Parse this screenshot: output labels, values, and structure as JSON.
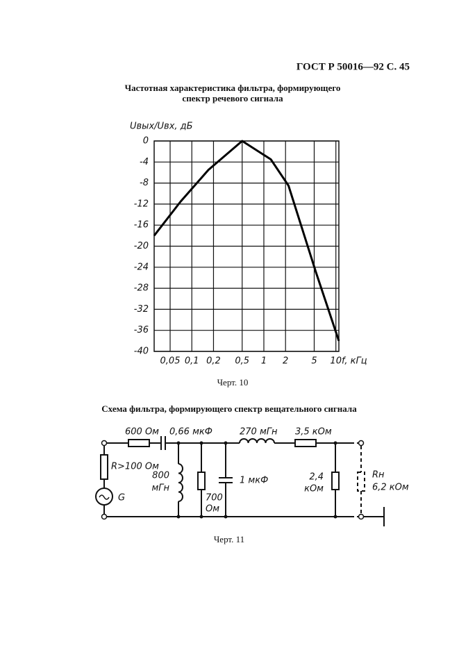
{
  "header": {
    "title": "ГОСТ Р 50016—92 С. 45"
  },
  "chart_data": {
    "type": "line",
    "title": [
      "Частотная характеристика фильтра, формирующего",
      "спектр речевого сигнала"
    ],
    "ylabel": "Uвых/Uвх, дБ",
    "xlabel": "f, кГц",
    "x": [
      0.03,
      0.07,
      0.17,
      0.5,
      1.25,
      2.2,
      5.3,
      11
    ],
    "values": [
      -18,
      -11.5,
      -5.5,
      0,
      -3.5,
      -8.5,
      -25,
      -38
    ],
    "color": "#000000",
    "xscale": "log",
    "xlim": [
      0.03,
      11
    ],
    "ylim": [
      -40,
      0
    ],
    "xticks": [
      {
        "value": 0.05,
        "label": "0,05"
      },
      {
        "value": 0.1,
        "label": "0,1"
      },
      {
        "value": 0.2,
        "label": "0,2"
      },
      {
        "value": 0.5,
        "label": "0,5"
      },
      1,
      2,
      5,
      10
    ],
    "yticks": [
      0,
      -4,
      -8,
      -12,
      -16,
      -20,
      -24,
      -28,
      -32,
      -36,
      -40
    ],
    "grid": true
  },
  "caption10": "Черт. 10",
  "schema": {
    "title": "Схема фильтра, формирующего спектр вещательного сигнала",
    "r1": "600 Ом",
    "c1": "0,66 мкФ",
    "l2": "270 мГн",
    "r4": "3,5 кОм",
    "rg": "R>100 Ом",
    "g": "G",
    "l1": [
      "800",
      "мГн"
    ],
    "r2": [
      "700",
      "Ом"
    ],
    "c2": "1 мкФ",
    "r3": [
      "2,4",
      "кОм"
    ],
    "rn": [
      "Rн",
      "6,2 кОм"
    ]
  },
  "caption11": "Черт. 11"
}
